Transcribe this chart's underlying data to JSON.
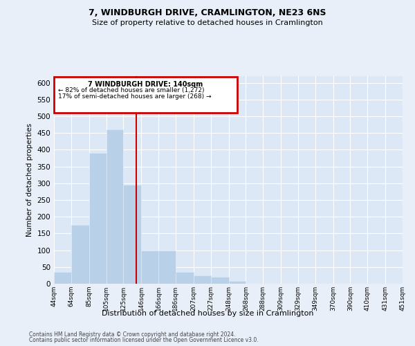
{
  "title1": "7, WINDBURGH DRIVE, CRAMLINGTON, NE23 6NS",
  "title2": "Size of property relative to detached houses in Cramlington",
  "xlabel": "Distribution of detached houses by size in Cramlington",
  "ylabel": "Number of detached properties",
  "footer1": "Contains HM Land Registry data © Crown copyright and database right 2024.",
  "footer2": "Contains public sector information licensed under the Open Government Licence v3.0.",
  "annotation_title": "7 WINDBURGH DRIVE: 140sqm",
  "annotation_line1": "← 82% of detached houses are smaller (1,272)",
  "annotation_line2": "17% of semi-detached houses are larger (268) →",
  "property_size": 140,
  "bar_color": "#b8d0e8",
  "line_color": "#cc0000",
  "annotation_box_color": "#cc0000",
  "bg_color": "#e8eff8",
  "plot_bg_color": "#dce8f5",
  "grid_color": "#ffffff",
  "bins": [
    44,
    64,
    85,
    105,
    125,
    146,
    166,
    186,
    207,
    227,
    248,
    268,
    288,
    309,
    329,
    349,
    370,
    390,
    410,
    431,
    451
  ],
  "counts": [
    35,
    175,
    390,
    460,
    295,
    100,
    100,
    35,
    25,
    20,
    8,
    1,
    1,
    0,
    0,
    0,
    1,
    0,
    0,
    1,
    0
  ],
  "ylim": [
    0,
    620
  ],
  "yticks": [
    0,
    50,
    100,
    150,
    200,
    250,
    300,
    350,
    400,
    450,
    500,
    550,
    600
  ]
}
